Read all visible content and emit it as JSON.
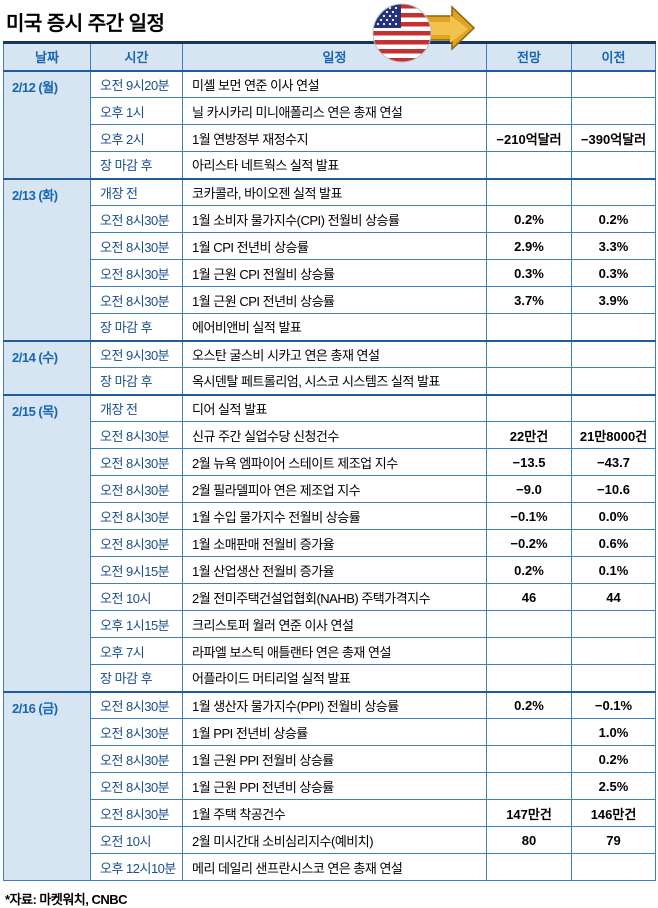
{
  "title": "미국 증시 주간 일정",
  "footer": "*자료: 마켓워치, CNBC",
  "colors": {
    "border_blue": "#3f7fbf",
    "group_border": "#1f5c9e",
    "header_bg": "#d7e5f3",
    "header_text": "#1766b0",
    "date_text": "#1766b0",
    "time_text": "#1b4f8a",
    "value_text": "#000000",
    "flag_red": "#c53030",
    "flag_blue": "#26337a",
    "arrow_gold": "#e0a422"
  },
  "icons": {
    "flag": "us-flag-icon",
    "arrow": "gold-arrow-icon"
  },
  "chart_data": {
    "type": "table",
    "columns": [
      "날짜",
      "시간",
      "일정",
      "전망",
      "이전"
    ],
    "groups": [
      {
        "date": "2/12 (월)",
        "rows": [
          {
            "time": "오전 9시20분",
            "event": "미셸 보먼 연준 이사 연설",
            "forecast": "",
            "previous": ""
          },
          {
            "time": "오후 1시",
            "event": "닐 카시카리 미니애폴리스 연은 총재 연설",
            "forecast": "",
            "previous": ""
          },
          {
            "time": "오후 2시",
            "event": "1월 연방정부 재정수지",
            "forecast": "−210억달러",
            "previous": "−390억달러"
          },
          {
            "time": "장 마감 후",
            "event": "아리스타 네트웍스 실적 발표",
            "forecast": "",
            "previous": ""
          }
        ]
      },
      {
        "date": "2/13 (화)",
        "rows": [
          {
            "time": "개장 전",
            "event": "코카콜라, 바이오젠 실적 발표",
            "forecast": "",
            "previous": ""
          },
          {
            "time": "오전 8시30분",
            "event": "1월 소비자 물가지수(CPI) 전월비 상승률",
            "forecast": "0.2%",
            "previous": "0.2%"
          },
          {
            "time": "오전 8시30분",
            "event": "1월 CPI 전년비 상승률",
            "forecast": "2.9%",
            "previous": "3.3%"
          },
          {
            "time": "오전 8시30분",
            "event": "1월 근원 CPI 전월비 상승률",
            "forecast": "0.3%",
            "previous": "0.3%"
          },
          {
            "time": "오전 8시30분",
            "event": "1월 근원 CPI 전년비 상승률",
            "forecast": "3.7%",
            "previous": "3.9%"
          },
          {
            "time": "장 마감 후",
            "event": "에어비앤비 실적 발표",
            "forecast": "",
            "previous": ""
          }
        ]
      },
      {
        "date": "2/14 (수)",
        "rows": [
          {
            "time": "오전 9시30분",
            "event": "오스탄 굴스비 시카고 연은 총재 연설",
            "forecast": "",
            "previous": ""
          },
          {
            "time": "장 마감 후",
            "event": "옥시덴탈 페트롤리엄, 시스코 시스템즈 실적 발표",
            "forecast": "",
            "previous": ""
          }
        ]
      },
      {
        "date": "2/15 (목)",
        "rows": [
          {
            "time": "개장 전",
            "event": "디어 실적 발표",
            "forecast": "",
            "previous": ""
          },
          {
            "time": "오전 8시30분",
            "event": "신규 주간 실업수당 신청건수",
            "forecast": "22만건",
            "previous": "21만8000건"
          },
          {
            "time": "오전 8시30분",
            "event": "2월 뉴욕 엠파이어 스테이트 제조업 지수",
            "forecast": "−13.5",
            "previous": "−43.7"
          },
          {
            "time": "오전 8시30분",
            "event": "2월 필라델피아 연은 제조업 지수",
            "forecast": "−9.0",
            "previous": "−10.6"
          },
          {
            "time": "오전 8시30분",
            "event": "1월 수입 물가지수 전월비 상승률",
            "forecast": "−0.1%",
            "previous": "0.0%"
          },
          {
            "time": "오전 8시30분",
            "event": "1월 소매판매 전월비 증가율",
            "forecast": "−0.2%",
            "previous": "0.6%"
          },
          {
            "time": "오전 9시15분",
            "event": "1월 산업생산 전월비 증가율",
            "forecast": "0.2%",
            "previous": "0.1%"
          },
          {
            "time": "오전 10시",
            "event": "2월 전미주택건설업협회(NAHB) 주택가격지수",
            "forecast": "46",
            "previous": "44"
          },
          {
            "time": "오후 1시15분",
            "event": "크리스토퍼 월러 연준 이사 연설",
            "forecast": "",
            "previous": ""
          },
          {
            "time": "오후 7시",
            "event": "라파엘 보스틱 애틀랜타 연은 총재 연설",
            "forecast": "",
            "previous": ""
          },
          {
            "time": "장 마감 후",
            "event": "어플라이드 머티리얼 실적 발표",
            "forecast": "",
            "previous": ""
          }
        ]
      },
      {
        "date": "2/16 (금)",
        "rows": [
          {
            "time": "오전 8시30분",
            "event": "1월 생산자 물가지수(PPI) 전월비 상승률",
            "forecast": "0.2%",
            "previous": "−0.1%"
          },
          {
            "time": "오전 8시30분",
            "event": "1월 PPI 전년비 상승률",
            "forecast": "",
            "previous": "1.0%"
          },
          {
            "time": "오전 8시30분",
            "event": "1월 근원 PPI 전월비 상승률",
            "forecast": "",
            "previous": "0.2%"
          },
          {
            "time": "오전 8시30분",
            "event": "1월 근원 PPI 전년비 상승률",
            "forecast": "",
            "previous": "2.5%"
          },
          {
            "time": "오전 8시30분",
            "event": "1월 주택 착공건수",
            "forecast": "147만건",
            "previous": "146만건"
          },
          {
            "time": "오전 10시",
            "event": "2월 미시간대 소비심리지수(예비치)",
            "forecast": "80",
            "previous": "79"
          },
          {
            "time": "오후 12시10분",
            "event": "메리 데일리 샌프란시스코 연은 총재 연설",
            "forecast": "",
            "previous": ""
          }
        ]
      }
    ]
  }
}
